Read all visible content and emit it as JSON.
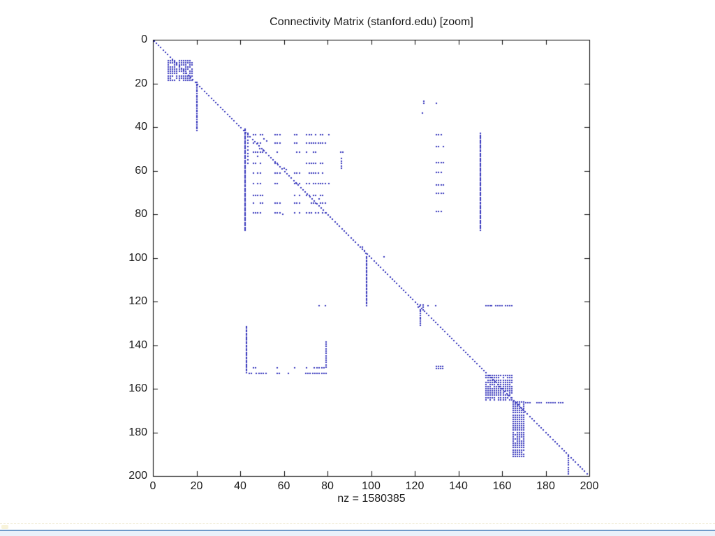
{
  "page": {
    "background": "#ffffff"
  },
  "chart_data": {
    "type": "scatter",
    "subtype": "spy-sparsity-plot",
    "title": "Connectivity Matrix (stanford.edu) [zoom]",
    "xlabel": "nz = 1580385",
    "nz": 1580385,
    "xlim": [
      0,
      200
    ],
    "ylim": [
      0,
      200
    ],
    "y_axis_inverted": true,
    "grid": false,
    "box": true,
    "x_ticks": [
      0,
      20,
      40,
      60,
      80,
      100,
      120,
      140,
      160,
      180,
      200
    ],
    "y_ticks": [
      0,
      20,
      40,
      60,
      80,
      100,
      120,
      140,
      160,
      180,
      200
    ],
    "marker_color": "#3535bb",
    "axis_color": "#000000",
    "features": [
      {
        "type": "diag",
        "from": [
          0.5,
          0.5
        ],
        "to": [
          199.5,
          199.5
        ],
        "step": 1.05
      },
      {
        "type": "block",
        "cols": [
          7,
          18.5
        ],
        "rows": [
          9.5,
          18.5
        ],
        "pitch": 1.0,
        "fill": 0.8,
        "seed": 11
      },
      {
        "type": "vline",
        "col": 20,
        "rows": [
          19.5,
          42
        ],
        "step": 0.85
      },
      {
        "type": "vline",
        "col": 42.3,
        "rows": [
          41,
          88
        ],
        "step": 0.75
      },
      {
        "type": "vline",
        "col": 43.4,
        "rows": [
          43,
          57
        ],
        "step": 1.5
      },
      {
        "type": "rowgroups",
        "rows": [
          43.5,
          47.5,
          51.5,
          56.5,
          61,
          66,
          71.5,
          75,
          79.5
        ],
        "groups": [
          [
            46,
            51
          ],
          [
            56,
            58.5
          ],
          [
            65,
            67.5
          ],
          [
            70.5,
            79.5
          ]
        ],
        "step": 1.05,
        "skip": 0.3,
        "seed": 21
      },
      {
        "type": "dots",
        "points": [
          [
            80.5,
            43.5
          ],
          [
            80.5,
            66
          ],
          [
            51,
            45.5
          ],
          [
            52,
            46.5
          ],
          [
            49,
            50
          ],
          [
            50.5,
            50.5
          ],
          [
            48,
            53.5
          ],
          [
            60,
            59
          ],
          [
            61,
            59.5
          ],
          [
            76,
            73
          ],
          [
            59.5,
            80
          ]
        ]
      },
      {
        "type": "vline",
        "col": 86.5,
        "rows": [
          54.5,
          59
        ],
        "step": 1.1
      },
      {
        "type": "dots",
        "points": [
          [
            86,
            51.5
          ],
          [
            87,
            51.5
          ]
        ]
      },
      {
        "type": "dots",
        "points": [
          [
            124,
            28
          ],
          [
            124,
            29.2
          ],
          [
            130,
            29
          ],
          [
            123.5,
            33.5
          ]
        ]
      },
      {
        "type": "rowgroups",
        "rows": [
          43.5,
          49,
          56.4,
          60.7,
          66.6,
          70.3,
          78.8
        ],
        "groups": [
          [
            130,
            133
          ]
        ],
        "step": 1.0,
        "skip": 0.15,
        "seed": 31
      },
      {
        "type": "vline",
        "col": 150,
        "rows": [
          43,
          87.5
        ],
        "step": 0.75
      },
      {
        "type": "vline",
        "col": 98,
        "rows": [
          99.5,
          122
        ],
        "step": 0.8
      },
      {
        "type": "dots",
        "points": [
          [
            106,
            99.5
          ],
          [
            96,
            95
          ],
          [
            97,
            96.5
          ],
          [
            97.5,
            98
          ],
          [
            76,
            122
          ],
          [
            79,
            122
          ],
          [
            126,
            122
          ],
          [
            129.5,
            122
          ]
        ]
      },
      {
        "type": "block",
        "cols": [
          121.5,
          124
        ],
        "rows": [
          121.5,
          124.5
        ],
        "pitch": 1.1,
        "fill": 0.8,
        "seed": 41
      },
      {
        "type": "vline",
        "col": 122.5,
        "rows": [
          124.5,
          131.5
        ],
        "step": 0.9
      },
      {
        "type": "hdash",
        "row": 122,
        "groups": [
          [
            152.5,
            155.5
          ],
          [
            157,
            160.5
          ],
          [
            161.5,
            164.5
          ]
        ],
        "step": 0.95
      },
      {
        "type": "vline",
        "col": 43,
        "rows": [
          131.5,
          153
        ],
        "step": 0.78
      },
      {
        "type": "hdash",
        "row": 150.5,
        "groups": [
          [
            46,
            47.5
          ],
          [
            57,
            58
          ],
          [
            65,
            65.5
          ],
          [
            70.5,
            71
          ],
          [
            74,
            79
          ]
        ],
        "step": 1.1
      },
      {
        "type": "hdash",
        "row": 153,
        "groups": [
          [
            44,
            45.5
          ],
          [
            47.5,
            52
          ],
          [
            57,
            58.5
          ],
          [
            62,
            63
          ],
          [
            70,
            80
          ]
        ],
        "step": 1.05
      },
      {
        "type": "vline",
        "col": 79.5,
        "rows": [
          138.5,
          150.5
        ],
        "step": 1.05
      },
      {
        "type": "block",
        "cols": [
          130,
          133.5
        ],
        "rows": [
          149.8,
          151.6
        ],
        "pitch": 0.95,
        "fill": 0.95,
        "seed": 51
      },
      {
        "type": "block",
        "cols": [
          152.5,
          164.5
        ],
        "rows": [
          154,
          165.5
        ],
        "pitch": 1.0,
        "fill": 0.9,
        "seed": 61
      },
      {
        "type": "block",
        "cols": [
          165,
          170.5
        ],
        "rows": [
          166,
          191
        ],
        "pitch": 1.0,
        "fill": 0.93,
        "seed": 71
      },
      {
        "type": "hdash",
        "row": 166.5,
        "groups": [
          [
            171,
            173.5
          ],
          [
            176,
            178
          ],
          [
            180.5,
            184.5
          ],
          [
            186,
            188.5
          ]
        ],
        "step": 0.95
      },
      {
        "type": "vline",
        "col": 190.5,
        "rows": [
          191,
          199
        ],
        "step": 1.0
      }
    ]
  },
  "bottom_strip": {
    "line_color": "#6f9ac9",
    "fill_color": "#e9f1fa",
    "dotted_line_color": "#e2d8aa"
  }
}
